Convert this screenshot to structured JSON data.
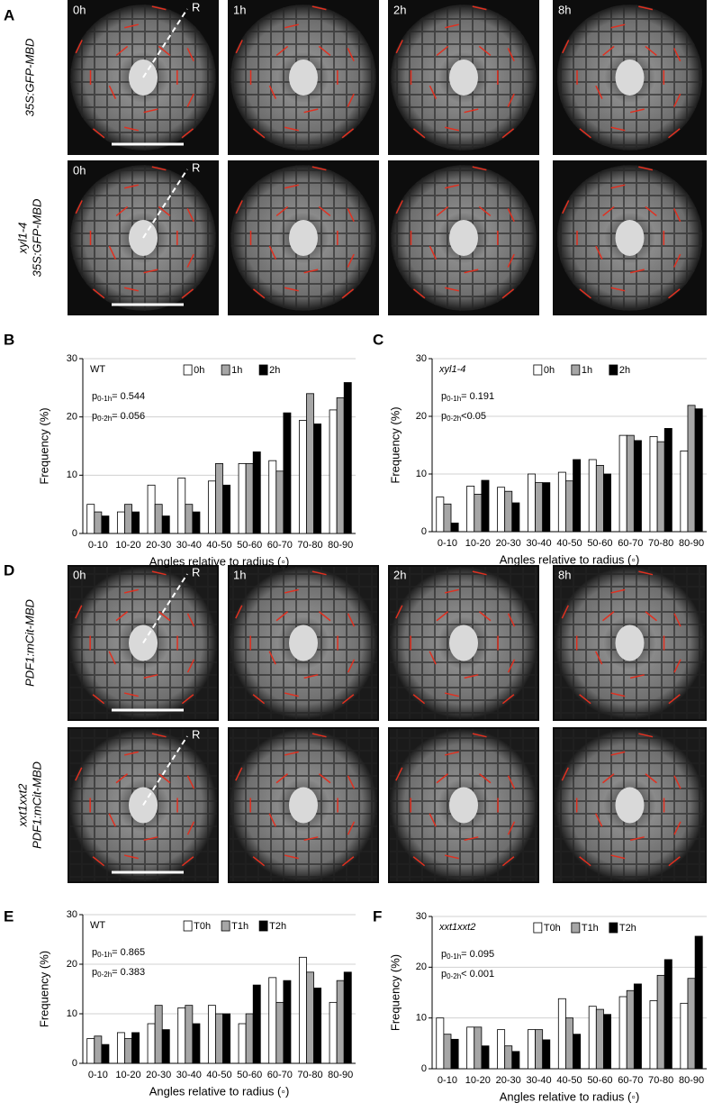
{
  "panel_labels": [
    "A",
    "B",
    "C",
    "D",
    "E",
    "F"
  ],
  "image_rows": [
    {
      "genotype": [
        "35S:GFP-MBD"
      ],
      "time_labels": [
        "0h",
        "1h",
        "2h",
        "8h"
      ],
      "marker": "R"
    },
    {
      "genotype": [
        "xyl1-4",
        "35S:GFP-MBD"
      ],
      "time_labels": [
        "0h"
      ],
      "marker": "R"
    },
    {
      "genotype": [
        "PDF1:mCit-MBD"
      ],
      "time_labels": [
        "0h",
        "1h",
        "2h",
        "8h"
      ],
      "marker": "R"
    },
    {
      "genotype": [
        "xxt1xxt2",
        "PDF1:mCit-MBD"
      ],
      "time_labels": [],
      "marker": "R"
    }
  ],
  "chart_data": [
    {
      "type": "bar",
      "label": "WT",
      "stats": [
        {
          "symbol": "p",
          "subscript": "0-1h",
          "text": "= 0.544"
        },
        {
          "symbol": "p",
          "subscript": "0-2h",
          "text": "= 0.056"
        }
      ],
      "xlabel": "Angles relative to radius (◦)",
      "ylabel": "Frequency (%)",
      "categories": [
        "0-10",
        "10-20",
        "20-30",
        "30-40",
        "40-50",
        "50-60",
        "60-70",
        "70-80",
        "80-90"
      ],
      "series": [
        {
          "name": "0h",
          "color": "#ffffff",
          "values": [
            5,
            3.7,
            8.3,
            9.5,
            9,
            12,
            12.5,
            19.4,
            21.2
          ]
        },
        {
          "name": "1h",
          "color": "#a6a6a6",
          "values": [
            3.7,
            5,
            5,
            5,
            12,
            12,
            10.7,
            24,
            23.3
          ]
        },
        {
          "name": "2h",
          "color": "#000000",
          "values": [
            3,
            3.7,
            3,
            3.7,
            8.3,
            14,
            20.7,
            18.8,
            25.9
          ]
        }
      ],
      "ylim": [
        0,
        30
      ],
      "yticks": [
        0,
        10,
        20,
        30
      ],
      "grid": true
    },
    {
      "type": "bar",
      "label": "xyl1-4",
      "stats": [
        {
          "symbol": "p",
          "subscript": "0-1h",
          "text": "= 0.191"
        },
        {
          "symbol": "p",
          "subscript": "0-2h",
          "text": "<0.05"
        }
      ],
      "xlabel": "Angles relative to radius (◦)",
      "ylabel": "Frequency (%)",
      "categories": [
        "0-10",
        "10-20",
        "20-30",
        "30-40",
        "40-50",
        "50-60",
        "60-70",
        "70-80",
        "80-90"
      ],
      "series": [
        {
          "name": "0h",
          "color": "#ffffff",
          "values": [
            6,
            7.9,
            7.7,
            10,
            10.3,
            12.5,
            16.7,
            16.5,
            14
          ]
        },
        {
          "name": "1h",
          "color": "#a6a6a6",
          "values": [
            4.8,
            6.5,
            7,
            8.5,
            8.8,
            11.5,
            16.7,
            15.6,
            21.9
          ]
        },
        {
          "name": "2h",
          "color": "#000000",
          "values": [
            1.5,
            8.9,
            5,
            8.5,
            12.5,
            10,
            15.8,
            17.9,
            21.3
          ]
        }
      ],
      "ylim": [
        0,
        30
      ],
      "yticks": [
        0,
        10,
        20,
        30
      ],
      "grid": true
    },
    {
      "type": "bar",
      "label": "WT",
      "stats": [
        {
          "symbol": "p",
          "subscript": "0-1h",
          "text": "= 0.865"
        },
        {
          "symbol": "p",
          "subscript": "0-2h",
          "text": "= 0.383"
        }
      ],
      "xlabel": "Angles relative to radius (◦)",
      "ylabel": "Frequency (%)",
      "categories": [
        "0-10",
        "10-20",
        "20-30",
        "30-40",
        "40-50",
        "50-60",
        "60-70",
        "70-80",
        "80-90"
      ],
      "series": [
        {
          "name": "T0h",
          "color": "#ffffff",
          "values": [
            5,
            6.2,
            8,
            11.2,
            11.7,
            8,
            17.3,
            21.4,
            12.3
          ]
        },
        {
          "name": "T1h",
          "color": "#a6a6a6",
          "values": [
            5.5,
            5,
            11.7,
            11.7,
            10,
            10,
            12.3,
            18.4,
            16.7
          ]
        },
        {
          "name": "T2h",
          "color": "#000000",
          "values": [
            3.8,
            6.2,
            6.8,
            8,
            10,
            15.8,
            16.7,
            15.2,
            18.4
          ]
        }
      ],
      "ylim": [
        0,
        30
      ],
      "yticks": [
        0,
        10,
        20,
        30
      ],
      "grid": true
    },
    {
      "type": "bar",
      "label": "xxt1xxt2",
      "stats": [
        {
          "symbol": "p",
          "subscript": "0-1h",
          "text": "= 0.095"
        },
        {
          "symbol": "p",
          "subscript": "0-2h",
          "text": "< 0.001"
        }
      ],
      "xlabel": "Angles relative to radius (◦)",
      "ylabel": "Frequency (%)",
      "categories": [
        "0-10",
        "10-20",
        "20-30",
        "30-40",
        "40-50",
        "50-60",
        "60-70",
        "70-80",
        "80-90"
      ],
      "series": [
        {
          "name": "T0h",
          "color": "#ffffff",
          "values": [
            10,
            8.2,
            7.7,
            7.7,
            13.8,
            12.3,
            14.2,
            13.4,
            12.9
          ]
        },
        {
          "name": "T1h",
          "color": "#a6a6a6",
          "values": [
            6.8,
            8.2,
            4.5,
            7.7,
            10,
            11.7,
            15.4,
            18.4,
            17.8
          ]
        },
        {
          "name": "T2h",
          "color": "#000000",
          "values": [
            5.8,
            4.5,
            3.4,
            5.7,
            6.8,
            10.7,
            16.7,
            21.5,
            26.1
          ]
        }
      ],
      "ylim": [
        0,
        30
      ],
      "yticks": [
        0,
        10,
        20,
        30
      ],
      "grid": true
    }
  ]
}
